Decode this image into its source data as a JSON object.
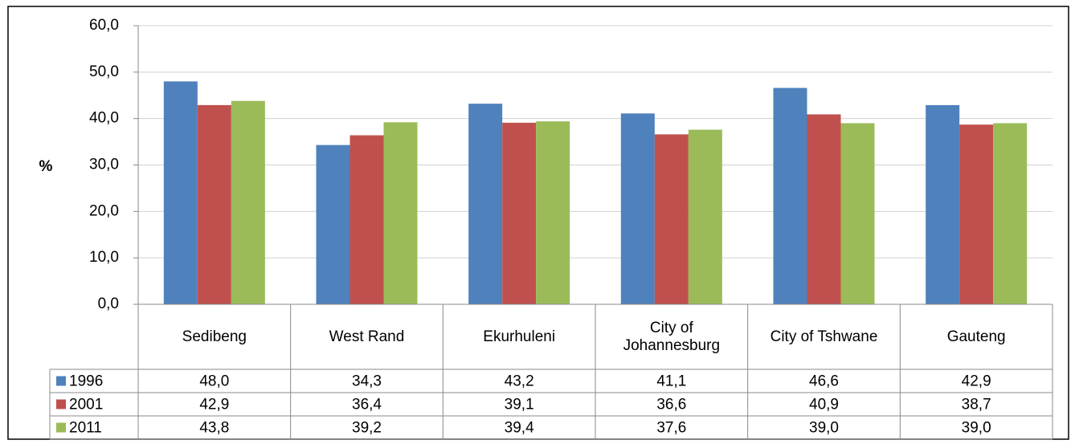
{
  "chart_data": {
    "type": "bar",
    "y_label": "%",
    "categories": [
      "Sedibeng",
      "West Rand",
      "Ekurhuleni",
      "City of Johannesburg",
      "City of Tshwane",
      "Gauteng"
    ],
    "series": [
      {
        "name": "1996",
        "color": "#4f81bd",
        "values": [
          48.0,
          34.3,
          43.2,
          41.1,
          46.6,
          42.9
        ],
        "value_labels": [
          "48,0",
          "34,3",
          "43,2",
          "41,1",
          "46,6",
          "42,9"
        ]
      },
      {
        "name": "2001",
        "color": "#c0504d",
        "values": [
          42.9,
          36.4,
          39.1,
          36.6,
          40.9,
          38.7
        ],
        "value_labels": [
          "42,9",
          "36,4",
          "39,1",
          "36,6",
          "40,9",
          "38,7"
        ]
      },
      {
        "name": "2011",
        "color": "#9bbb59",
        "values": [
          43.8,
          39.2,
          39.4,
          37.6,
          39.0,
          39.0
        ],
        "value_labels": [
          "43,8",
          "39,2",
          "39,4",
          "37,6",
          "39,0",
          "39,0"
        ]
      }
    ],
    "ylim": [
      0,
      60
    ],
    "yticks": [
      {
        "value": 0,
        "label": "0,0"
      },
      {
        "value": 10,
        "label": "10,0"
      },
      {
        "value": 20,
        "label": "20,0"
      },
      {
        "value": 30,
        "label": "30,0"
      },
      {
        "value": 40,
        "label": "40,0"
      },
      {
        "value": 50,
        "label": "50,0"
      },
      {
        "value": 60,
        "label": "60,0"
      }
    ],
    "grid": true
  }
}
